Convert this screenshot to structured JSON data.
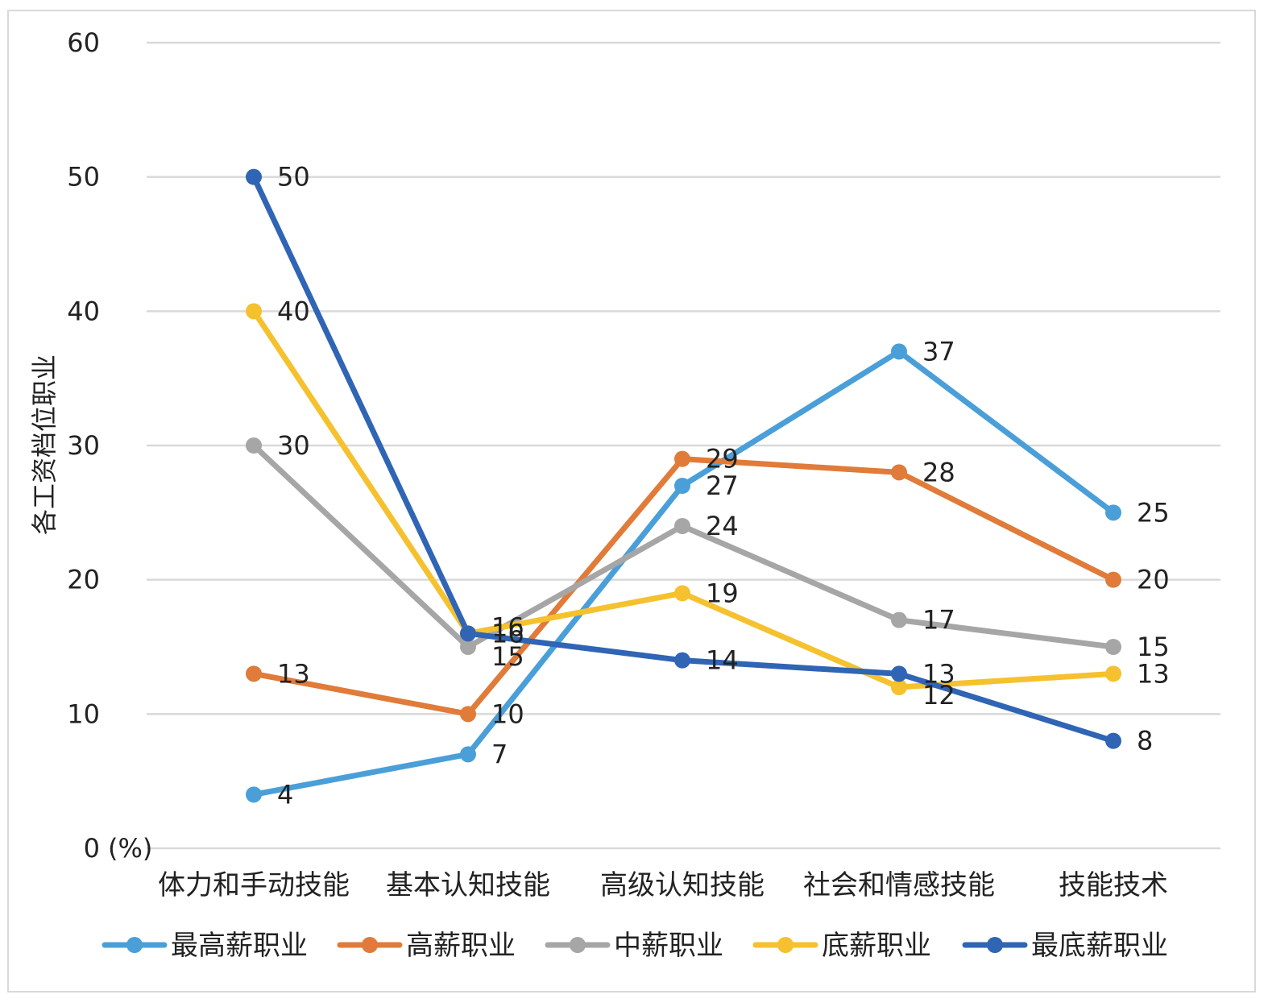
{
  "chart_data": {
    "type": "line",
    "ylabel": "各工资档位职业",
    "y_unit": "(%)",
    "ylim": [
      0,
      60
    ],
    "yticks": [
      0,
      10,
      20,
      30,
      40,
      50,
      60
    ],
    "grid": true,
    "legend_position": "bottom",
    "categories": [
      "体力和手动技能",
      "基本认知技能",
      "高级认知技能",
      "社会和情感技能",
      "技能技术"
    ],
    "series": [
      {
        "name": "最高薪职业",
        "color": "#4a9fd8",
        "values": [
          4,
          7,
          27,
          37,
          25
        ]
      },
      {
        "name": "高薪职业",
        "color": "#e07b39",
        "values": [
          13,
          10,
          29,
          28,
          20
        ]
      },
      {
        "name": "中薪职业",
        "color": "#a6a6a6",
        "values": [
          30,
          15,
          24,
          17,
          15
        ]
      },
      {
        "name": "底薪职业",
        "color": "#f5c12e",
        "values": [
          40,
          16,
          19,
          12,
          13
        ]
      },
      {
        "name": "最底薪职业",
        "color": "#2f65b4",
        "values": [
          50,
          16,
          14,
          13,
          8
        ]
      }
    ]
  }
}
